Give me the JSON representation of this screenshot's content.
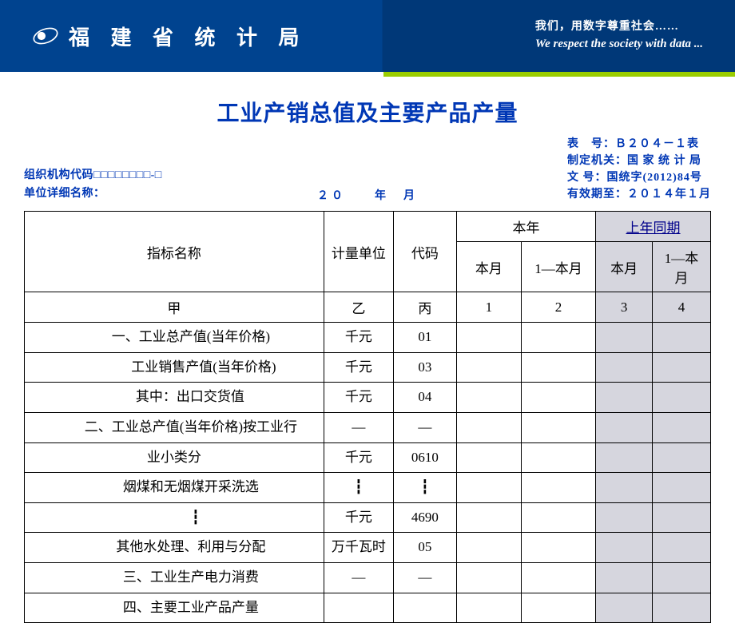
{
  "header": {
    "org_name": "福 建 省 统 计 局",
    "tagline_cn": "我们，用数字尊重社会……",
    "tagline_en": "We respect the society with data ..."
  },
  "doc": {
    "title": "工业产销总值及主要产品产量",
    "org_code_label": "组织机构代码□□□□□□□□-□",
    "unit_name_label": "单位详细名称：",
    "period_text": "２０　　年　月",
    "form_no": "表　号：Ｂ２０４－１表",
    "maker": "制定机关：国 家 统 计 局",
    "doc_no": "文 号：国统字(2012)84号",
    "valid": "有效期至：２０１４年１月"
  },
  "table": {
    "headers": {
      "name": "指标名称",
      "unit": "计量单位",
      "code": "代码",
      "thisyear": "本年",
      "lastyear": "上年同期",
      "thismonth": "本月",
      "one_to_month": "1—本月",
      "ly_thismonth": "本月",
      "ly_one_to_month": "1—本月"
    },
    "labelrow": {
      "name": "甲",
      "unit": "乙",
      "code": "丙",
      "c1": "1",
      "c2": "2",
      "c3": "3",
      "c4": "4"
    },
    "rows": [
      {
        "name": "一、工业总产值(当年价格)",
        "unit": "千元",
        "code": "01",
        "indent": "indent1"
      },
      {
        "name": "工业销售产值(当年价格)",
        "unit": "千元",
        "code": "03",
        "indent": "indent2"
      },
      {
        "name": "其中：出口交货值",
        "unit": "千元",
        "code": "04",
        "indent": "indent-qi"
      },
      {
        "name": "二、工业总产值(当年价格)按工业行",
        "unit": "—",
        "code": "—",
        "indent": "indent1"
      },
      {
        "name": "业小类分",
        "unit": "千元",
        "code": "0610",
        "indent": ""
      },
      {
        "name": "烟煤和无烟煤开采洗选",
        "unit": "┇",
        "code": "┇",
        "indent": "indent1"
      },
      {
        "name": "┇",
        "unit": "千元",
        "code": "4690",
        "indent": "indent-half"
      },
      {
        "name": "其他水处理、利用与分配",
        "unit": "万千瓦时",
        "code": "05",
        "indent": "indent1"
      },
      {
        "name": "三、工业生产电力消费",
        "unit": "—",
        "code": "—",
        "indent": "indent1"
      },
      {
        "name": "四、主要工业产品产量",
        "unit": "",
        "code": "",
        "indent": "indent1",
        "last": true
      }
    ]
  },
  "colors": {
    "header_bg_left": "#00438f",
    "header_bg_right": "#003878",
    "accent": "#9acd00",
    "title_color": "#0037b5",
    "ly_bg": "#d6d6de",
    "link_color": "#00008b"
  }
}
